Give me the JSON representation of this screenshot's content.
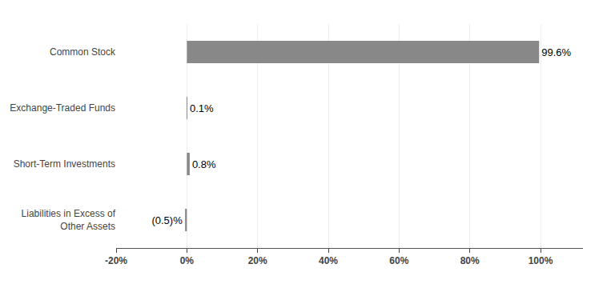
{
  "chart_data": {
    "type": "bar",
    "orientation": "horizontal",
    "categories": [
      "Common Stock",
      "Exchange-Traded Funds",
      "Short-Term Investments",
      "Liabilities in Excess of\nOther Assets"
    ],
    "values": [
      99.6,
      0.1,
      0.8,
      -0.5
    ],
    "value_labels": [
      "99.6%",
      "0.1%",
      "0.8%",
      "(0.5)%"
    ],
    "data_labels": true,
    "color": "#888888",
    "xlim": [
      -20,
      112
    ],
    "xticks": [
      {
        "value": -20,
        "label": "-20%"
      },
      {
        "value": 0,
        "label": "0%"
      },
      {
        "value": 20,
        "label": "20%"
      },
      {
        "value": 40,
        "label": "40%"
      },
      {
        "value": 60,
        "label": "60%"
      },
      {
        "value": 80,
        "label": "80%"
      },
      {
        "value": 100,
        "label": "100%"
      }
    ],
    "grid": true
  }
}
